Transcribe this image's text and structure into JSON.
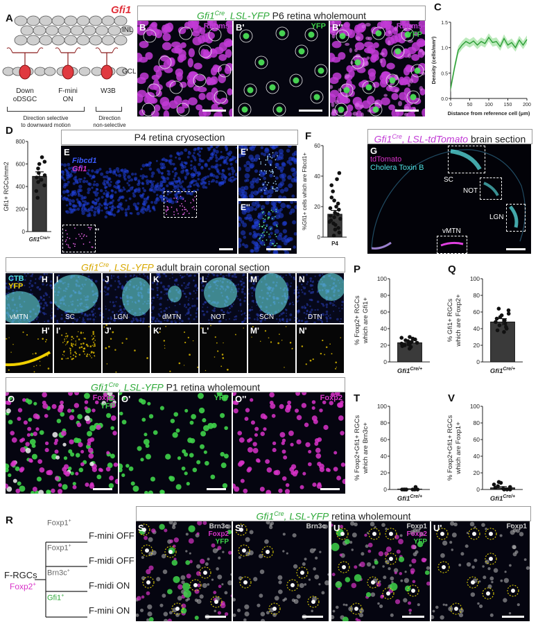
{
  "panelA": {
    "letter": "A",
    "gene": "Gfi1",
    "layer_inl": "INL",
    "layer_gcl": "GCL",
    "cell1_name": "Down",
    "cell1_name2": "oDSGC",
    "cell2_name": "F-mini",
    "cell2_name2": "ON",
    "cell3_name": "W3B",
    "group1_note": "Direction selective",
    "group1_note2": "to downward motion",
    "group2_note": "Direction",
    "group2_note2": "non-selective"
  },
  "panelB": {
    "title_gene": "Gfi1",
    "title_cre": "Cre",
    "title_rest": ", LSL-YFP",
    "title_tail": " P6 retina wholemount",
    "letter_b": "B",
    "letter_b1": "B'",
    "letter_b2": "B''",
    "label_rbpms": "Rbpms",
    "label_yfp": "YFP",
    "label_rbpms2": "Rbpms",
    "label_yfp2": "YFP",
    "colors": {
      "magenta": "#c23bd6",
      "green": "#3fd34a"
    }
  },
  "panelC": {
    "letter": "C",
    "ylabel": "Density (cells/mm²)",
    "xlabel": "Distance from reference cell (μm)"
  },
  "panelD": {
    "letter": "D",
    "ylabel": "Gfi1+ RGCs/mm2",
    "xlabel": "Gfi1",
    "xlabel_sup": "Cre/+"
  },
  "panelE": {
    "title": "P4 retina cryosection",
    "letter_e": "E",
    "letter_e1": "E'",
    "letter_e2": "E''",
    "label_fibcd1": "Fibcd1",
    "label_gfi1": "Gfi1",
    "inset_mark": "''"
  },
  "panelF": {
    "letter": "F",
    "ylabel": "%Gfi1+ cells which are Fibcd1+",
    "xlabel": "P4"
  },
  "panelG": {
    "title_gene": "Gfi1",
    "title_cre": "Cre",
    "title_rest": ", LSL-tdTomato",
    "title_tail": " brain section",
    "letter": "G",
    "label_td": "tdTomato",
    "label_ctb": "Cholera Toxin B",
    "regions": [
      "SC",
      "NOT",
      "LGN",
      "vMTN"
    ]
  },
  "panelH": {
    "title_gene": "Gfi1",
    "title_cre": "Cre",
    "title_rest": ", LSL-YFP",
    "title_tail": " adult brain coronal section",
    "label_ctb": "CTB",
    "label_yfp": "YFP",
    "top_letters": [
      "H",
      "I",
      "J",
      "K",
      "L",
      "M",
      "N"
    ],
    "top_regions": [
      "vMTN",
      "SC",
      "LGN",
      "dMTN",
      "NOT",
      "SCN",
      "DTN"
    ],
    "bottom_letters": [
      "H'",
      "I'",
      "J'",
      "K'",
      "L'",
      "M'",
      "N'"
    ]
  },
  "panelO": {
    "title_gene": "Gfi1",
    "title_cre": "Cre",
    "title_rest": ", LSL-YFP",
    "title_tail": " P1 retina wholemount",
    "letter_o": "O",
    "letter_o1": "O'",
    "letter_o2": "O''",
    "label_foxp2": "Foxp2",
    "label_yfp": "YFP",
    "label_yfp2": "YFP",
    "label_foxp2b": "Foxp2"
  },
  "panelP": {
    "letter": "P",
    "ylabel1": "% Foxp2+ RGCs",
    "ylabel2": "which are Gfi1+",
    "xlabel": "Gfi1",
    "xlabel_sup": "Cre/+"
  },
  "panelQ": {
    "letter": "Q",
    "ylabel1": "% Gfi1+ RGCs",
    "ylabel2": "which are Foxp2+",
    "xlabel": "Gfi1",
    "xlabel_sup": "Cre/+"
  },
  "panelT": {
    "letter": "T",
    "ylabel1": "% Foxp2+Gfi1+ RGCs",
    "ylabel2": "which are Brn3c+",
    "xlabel": "Gfi1",
    "xlabel_sup": "Cre/+"
  },
  "panelV": {
    "letter": "V",
    "ylabel1": "% Foxp2+Gfi1+ RGCs",
    "ylabel2": "which are Foxp1+",
    "xlabel": "Gfi1",
    "xlabel_sup": "Cre/+"
  },
  "panelR": {
    "letter": "R",
    "root1": "F-RGCs",
    "root2": "Foxp2",
    "root2_sup": "+",
    "markers": [
      "Foxp1",
      "Foxp1",
      "Brn3c",
      "Gfi1"
    ],
    "marker_sup": "+",
    "types": [
      "F-mini OFF",
      "F-midi OFF",
      "F-midi ON",
      "F-mini ON"
    ]
  },
  "panelS": {
    "title_gene": "Gfi1",
    "title_cre": "Cre",
    "title_rest": ", LSL-YFP",
    "title_tail": " retina wholemount",
    "letter_s": "S",
    "letter_s1": "S'",
    "letter_u": "U",
    "letter_u1": "U'",
    "s_labels": [
      "Brn3c",
      "Foxp2",
      "YFP"
    ],
    "s1_label": "Brn3c",
    "u_labels": [
      "Foxp1",
      "Foxp2",
      "YFP"
    ],
    "u1_label": "Foxp1"
  },
  "chart_data": [
    {
      "type": "line",
      "panel": "C",
      "xlabel": "Distance from reference cell (μm)",
      "ylabel": "Density (cells/mm²)",
      "xlim": [
        0,
        200
      ],
      "ylim": [
        0,
        1.5
      ],
      "xticks": [
        0,
        50,
        100,
        150,
        200
      ],
      "yticks": [
        0.0,
        0.5,
        1.0,
        1.5
      ],
      "x": [
        0,
        10,
        20,
        30,
        40,
        50,
        60,
        70,
        80,
        90,
        100,
        110,
        120,
        130,
        140,
        150,
        160,
        170,
        180,
        190,
        200
      ],
      "y": [
        0.2,
        0.6,
        0.95,
        1.05,
        1.12,
        1.08,
        1.13,
        1.05,
        1.12,
        1.08,
        1.2,
        1.1,
        1.12,
        1.02,
        1.18,
        1.05,
        1.1,
        1.0,
        1.15,
        1.05,
        1.16
      ]
    },
    {
      "type": "bar",
      "panel": "D",
      "ylim": [
        0,
        800
      ],
      "yticks": [
        0,
        200,
        400,
        600,
        800
      ],
      "categories": [
        "Gfi1Cre/+"
      ],
      "values": [
        490
      ],
      "error": 40,
      "points": [
        300,
        360,
        410,
        440,
        460,
        480,
        500,
        520,
        560,
        600,
        620,
        660
      ]
    },
    {
      "type": "bar",
      "panel": "F",
      "ylim": [
        0,
        60
      ],
      "yticks": [
        0,
        20,
        40,
        60
      ],
      "categories": [
        "P4"
      ],
      "values": [
        15
      ],
      "error": 2.5,
      "points": [
        1,
        3,
        5,
        6,
        8,
        9,
        10,
        11,
        12,
        13,
        14,
        15,
        16,
        18,
        19,
        20,
        22,
        24,
        26,
        30,
        34,
        38,
        42
      ]
    },
    {
      "type": "bar",
      "panel": "P",
      "ylim": [
        0,
        100
      ],
      "yticks": [
        0,
        20,
        40,
        60,
        80,
        100
      ],
      "categories": [
        "Gfi1Cre/+"
      ],
      "values": [
        23
      ],
      "error": 2,
      "points": [
        16,
        18,
        19,
        20,
        21,
        22,
        22,
        23,
        24,
        25,
        26,
        27,
        28,
        29,
        30
      ]
    },
    {
      "type": "bar",
      "panel": "Q",
      "ylim": [
        0,
        100
      ],
      "yticks": [
        0,
        20,
        40,
        60,
        80,
        100
      ],
      "categories": [
        "Gfi1Cre/+"
      ],
      "values": [
        48
      ],
      "error": 4,
      "points": [
        36,
        38,
        40,
        42,
        44,
        46,
        48,
        50,
        52,
        54,
        56,
        58,
        62,
        64
      ]
    },
    {
      "type": "bar",
      "panel": "T",
      "ylim": [
        0,
        100
      ],
      "yticks": [
        0,
        20,
        40,
        60,
        80,
        100
      ],
      "categories": [
        "Gfi1Cre/+"
      ],
      "values": [
        0.5
      ],
      "error": 0.3,
      "points": [
        0,
        0,
        0,
        0,
        0,
        0,
        0,
        0,
        3
      ]
    },
    {
      "type": "bar",
      "panel": "V",
      "ylim": [
        0,
        100
      ],
      "yticks": [
        0,
        20,
        40,
        60,
        80,
        100
      ],
      "categories": [
        "Gfi1Cre/+"
      ],
      "values": [
        2
      ],
      "error": 1.5,
      "points": [
        0,
        0,
        0,
        1,
        2,
        3,
        4,
        6,
        8,
        9
      ]
    }
  ]
}
